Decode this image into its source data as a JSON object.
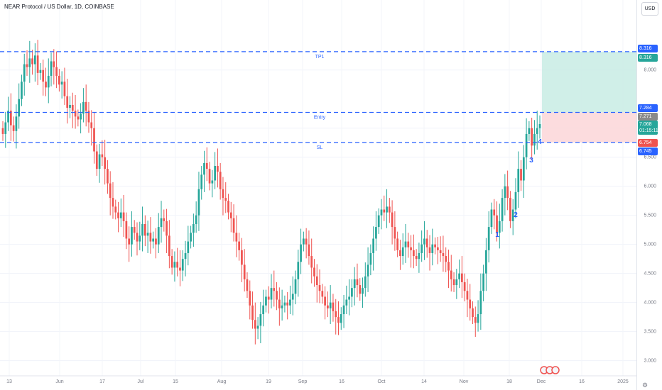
{
  "title": "NEAR Protocol / US Dollar, 1D, COINBASE",
  "currency_button": "USD",
  "colors": {
    "up": "#26a69a",
    "down": "#ef5350",
    "line": "#2962ff",
    "tp_zone": "#c8ece4",
    "sl_zone": "#fbd6d8"
  },
  "price_tags": [
    {
      "text": "8.316",
      "color": "#2962ff",
      "y": 8.38
    },
    {
      "text": "8.316",
      "color": "#26a69a",
      "y": 8.22
    },
    {
      "text": "7.284",
      "color": "#2962ff",
      "y": 7.35
    },
    {
      "text": "7.271",
      "color": "#8a8a8a",
      "y": 7.2
    },
    {
      "text": "7.068",
      "color": "#26a69a",
      "y": 7.07
    },
    {
      "text": "01:15:11",
      "color": "#26a69a",
      "y": 6.96
    },
    {
      "text": "6.754",
      "color": "#ef5350",
      "y": 6.75
    },
    {
      "text": "6.745",
      "color": "#2962ff",
      "y": 6.61
    }
  ],
  "chart_data": {
    "type": "candlestick",
    "title": "NEAR Protocol / US Dollar, 1D, COINBASE",
    "ylim": [
      2.8,
      8.9
    ],
    "y_ticks": [
      3.0,
      3.5,
      4.0,
      4.5,
      5.0,
      5.5,
      6.0,
      6.5,
      7.0,
      8.0
    ],
    "y_tick_labels": [
      "3.000",
      "3.500",
      "4.000",
      "4.500",
      "5.000",
      "5.500",
      "6.000",
      "6.500",
      "7.000",
      "8.000"
    ],
    "x_labels": [
      "13",
      "Jun",
      "17",
      "Jul",
      "15",
      "Aug",
      "19",
      "Sep",
      "16",
      "Oct",
      "14",
      "Nov",
      "18",
      "Dec",
      "16",
      "2025"
    ],
    "close": [
      6.9,
      7.1,
      7.3,
      7.05,
      6.95,
      7.2,
      7.5,
      7.8,
      8.1,
      8.05,
      8.2,
      8.1,
      8.25,
      7.95,
      8.0,
      7.8,
      7.7,
      7.9,
      8.15,
      8.05,
      7.9,
      7.75,
      7.8,
      7.55,
      7.35,
      7.4,
      7.3,
      7.2,
      7.15,
      7.25,
      7.45,
      7.3,
      7.1,
      7.0,
      6.6,
      6.3,
      6.55,
      6.5,
      6.3,
      6.05,
      5.8,
      5.65,
      5.55,
      5.45,
      5.55,
      5.4,
      5.1,
      5.0,
      5.3,
      5.2,
      5.05,
      5.15,
      5.35,
      5.15,
      5.2,
      5.05,
      5.1,
      5.0,
      5.3,
      5.45,
      5.4,
      5.15,
      4.8,
      4.6,
      4.7,
      4.6,
      4.55,
      4.75,
      4.85,
      5.05,
      5.2,
      5.35,
      5.5,
      5.95,
      6.2,
      6.4,
      6.3,
      6.05,
      6.1,
      6.35,
      6.25,
      5.95,
      5.8,
      5.75,
      5.55,
      5.45,
      5.2,
      5.05,
      4.9,
      4.65,
      4.4,
      4.2,
      3.95,
      3.7,
      3.55,
      3.6,
      3.8,
      3.95,
      4.1,
      4.05,
      4.25,
      4.2,
      4.05,
      3.9,
      3.95,
      4.0,
      3.95,
      4.05,
      4.15,
      4.4,
      4.7,
      5.0,
      5.1,
      5.0,
      4.8,
      4.6,
      4.45,
      4.3,
      4.2,
      4.1,
      3.95,
      3.9,
      4.0,
      3.85,
      3.75,
      3.65,
      3.8,
      3.95,
      4.05,
      4.1,
      4.25,
      4.4,
      4.3,
      4.15,
      4.25,
      4.45,
      4.65,
      4.85,
      5.1,
      5.3,
      5.5,
      5.6,
      5.55,
      5.65,
      5.55,
      5.3,
      5.1,
      4.9,
      4.8,
      4.95,
      5.05,
      4.95,
      4.9,
      4.8,
      4.75,
      4.85,
      5.0,
      5.1,
      4.95,
      4.85,
      5.0,
      4.95,
      4.9,
      4.85,
      4.8,
      4.7,
      4.55,
      4.4,
      4.3,
      4.4,
      4.5,
      4.35,
      4.2,
      4.05,
      3.9,
      3.75,
      3.65,
      3.8,
      4.2,
      4.5,
      4.9,
      5.3,
      5.6,
      5.5,
      5.2,
      5.4,
      5.8,
      6.0,
      5.8,
      5.4,
      5.6,
      5.9,
      6.3,
      6.1,
      6.5,
      6.9,
      7.0,
      6.7,
      6.9,
      7.0,
      7.07
    ],
    "levels": [
      {
        "name": "TP1",
        "value": 8.316
      },
      {
        "name": "Entry",
        "value": 7.271
      },
      {
        "name": "SL",
        "value": 6.754
      }
    ],
    "wave_labels": [
      "1",
      "2",
      "3",
      "4"
    ]
  }
}
